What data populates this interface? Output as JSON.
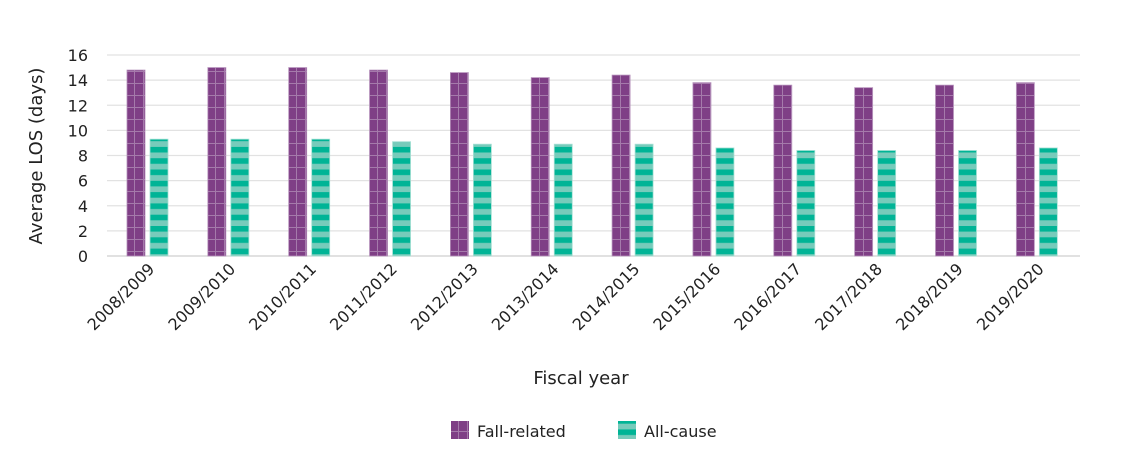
{
  "chart_data": {
    "type": "bar",
    "title": "",
    "xlabel": "Fiscal year",
    "ylabel": "Average LOS (days)",
    "ylim": [
      0,
      16
    ],
    "yticks": [
      0,
      2,
      4,
      6,
      8,
      10,
      12,
      14,
      16
    ],
    "grid": true,
    "legend_position": "bottom",
    "categories": [
      "2008/2009",
      "2009/2010",
      "2010/2011",
      "2011/2012",
      "2012/2013",
      "2013/2014",
      "2014/2015",
      "2015/2016",
      "2016/2017",
      "2017/2018",
      "2018/2019",
      "2019/2020"
    ],
    "series": [
      {
        "name": "Fall-related",
        "color": "#7f3f86",
        "pattern": "grid",
        "values": [
          14.8,
          15.0,
          15.0,
          14.8,
          14.6,
          14.2,
          14.4,
          13.8,
          13.6,
          13.4,
          13.6,
          13.8
        ]
      },
      {
        "name": "All-cause",
        "color": "#00b496",
        "pattern": "horizontal-stripes",
        "values": [
          9.3,
          9.3,
          9.3,
          9.1,
          8.9,
          8.9,
          8.9,
          8.6,
          8.4,
          8.4,
          8.4,
          8.6
        ]
      }
    ]
  }
}
